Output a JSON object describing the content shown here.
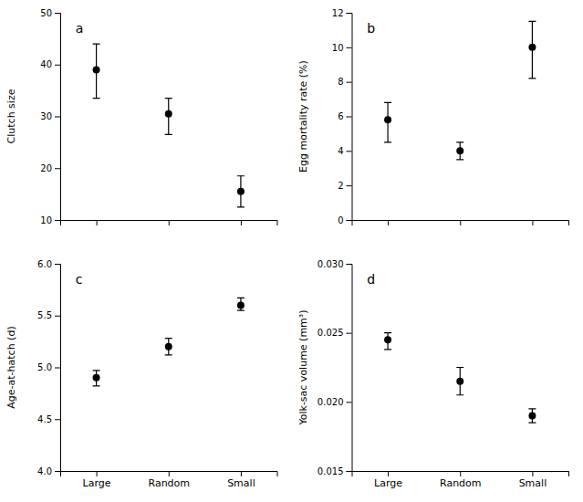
{
  "chart_data": [
    {
      "type": "errorbar",
      "annotation": "a",
      "ylabel": "Clutch size",
      "categories": [
        "Large",
        "Random",
        "Small"
      ],
      "values": [
        39,
        30.5,
        15.5
      ],
      "upper_err": [
        5,
        3,
        3
      ],
      "lower_err": [
        5.5,
        4,
        3
      ],
      "ylim": [
        10,
        50
      ],
      "yticks": [
        10,
        20,
        30,
        40,
        50
      ],
      "color": "#000000",
      "tick_labels": "y"
    },
    {
      "type": "errorbar",
      "annotation": "b",
      "ylabel": "Egg mortality rate (%)",
      "categories": [
        "Large",
        "Random",
        "Small"
      ],
      "values": [
        5.8,
        4.0,
        10.0
      ],
      "upper_err": [
        1.0,
        0.5,
        1.5
      ],
      "lower_err": [
        1.3,
        0.5,
        1.8
      ],
      "ylim": [
        0,
        12
      ],
      "yticks": [
        0,
        2,
        4,
        6,
        8,
        10,
        12
      ],
      "color": "#000000",
      "tick_labels": "y"
    },
    {
      "type": "errorbar",
      "annotation": "c",
      "ylabel": "Age-at-hatch (d)",
      "categories": [
        "Large",
        "Random",
        "Small"
      ],
      "values": [
        4.9,
        5.2,
        5.6
      ],
      "upper_err": [
        0.07,
        0.08,
        0.07
      ],
      "lower_err": [
        0.08,
        0.08,
        0.05
      ],
      "ylim": [
        4.0,
        6.0
      ],
      "yticks": [
        {
          "value": 4.0,
          "label": "4.0"
        },
        4.5,
        {
          "value": 5.0,
          "label": "5.0"
        },
        5.5,
        {
          "value": 6.0,
          "label": "6.0"
        }
      ],
      "color": "#000000"
    },
    {
      "type": "errorbar",
      "annotation": "d",
      "ylabel": "Yolk-sac volume (mm³)",
      "categories": [
        "Large",
        "Random",
        "Small"
      ],
      "values": [
        0.0245,
        0.0215,
        0.019
      ],
      "upper_err": [
        0.0005,
        0.001,
        0.0005
      ],
      "lower_err": [
        0.0007,
        0.001,
        0.0005
      ],
      "ylim": [
        0.015,
        0.03
      ],
      "yticks": [
        0.015,
        {
          "value": 0.02,
          "label": "0.020"
        },
        0.025,
        {
          "value": 0.03,
          "label": "0.030"
        }
      ],
      "color": "#000000"
    }
  ]
}
